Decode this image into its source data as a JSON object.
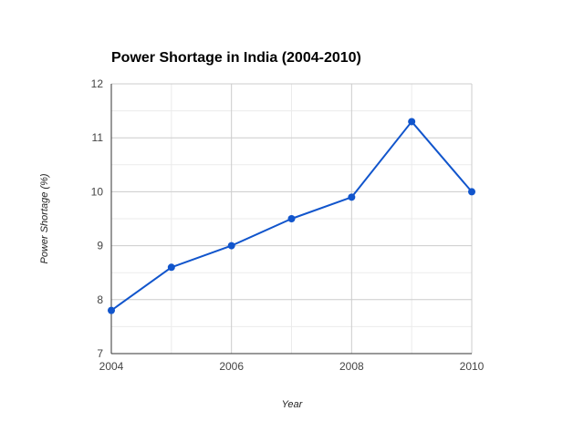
{
  "colors": {
    "series": "#1155cc",
    "grid_major": "#cccccc",
    "grid_minor": "#ebebeb",
    "axis": "#333333",
    "background": "#ffffff"
  },
  "chart_data": {
    "type": "line",
    "title": "Power Shortage in India (2004-2010)",
    "xlabel": "Year",
    "ylabel": "Power Shortage (%)",
    "x": [
      2004,
      2005,
      2006,
      2007,
      2008,
      2009,
      2010
    ],
    "series": [
      {
        "values": [
          7.8,
          8.6,
          9.0,
          9.5,
          9.9,
          11.3,
          10.0
        ]
      }
    ],
    "xlim": [
      2004,
      2010
    ],
    "ylim": [
      7,
      12
    ],
    "xticks": [
      "2004",
      "2006",
      "2008",
      "2010"
    ],
    "yticks": [
      "7",
      "8",
      "9",
      "10",
      "11",
      "12"
    ],
    "grid": true,
    "legend": "none"
  }
}
